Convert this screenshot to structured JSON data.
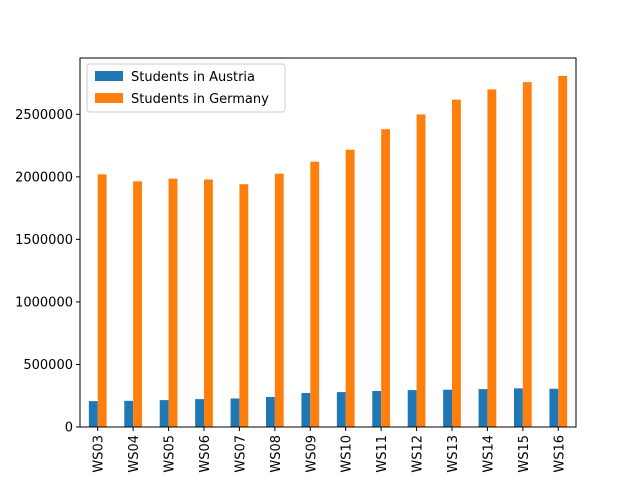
{
  "chart_data": {
    "type": "bar",
    "categories": [
      "WS03",
      "WS04",
      "WS05",
      "WS06",
      "WS07",
      "WS08",
      "WS09",
      "WS10",
      "WS11",
      "WS12",
      "WS13",
      "WS14",
      "WS15",
      "WS16"
    ],
    "series": [
      {
        "name": "Students in Austria",
        "color": "#1f77b4",
        "values": [
          207000,
          209000,
          215000,
          223000,
          228000,
          240000,
          272000,
          279000,
          288000,
          295000,
          298000,
          303000,
          309000,
          306000
        ]
      },
      {
        "name": "Students in Germany",
        "color": "#ff7f0e",
        "values": [
          2020000,
          1964000,
          1986000,
          1979000,
          1941000,
          2025000,
          2121000,
          2217000,
          2381000,
          2499000,
          2617000,
          2699000,
          2757000,
          2807000
        ]
      }
    ],
    "ylim": [
      0,
      2950000
    ],
    "yticks": [
      0,
      500000,
      1000000,
      1500000,
      2000000,
      2500000
    ],
    "ytick_labels": [
      "0",
      "500000",
      "1000000",
      "1500000",
      "2000000",
      "2500000"
    ],
    "legend_position": "top-left",
    "grid": false,
    "title": "",
    "xlabel": "",
    "ylabel": ""
  }
}
